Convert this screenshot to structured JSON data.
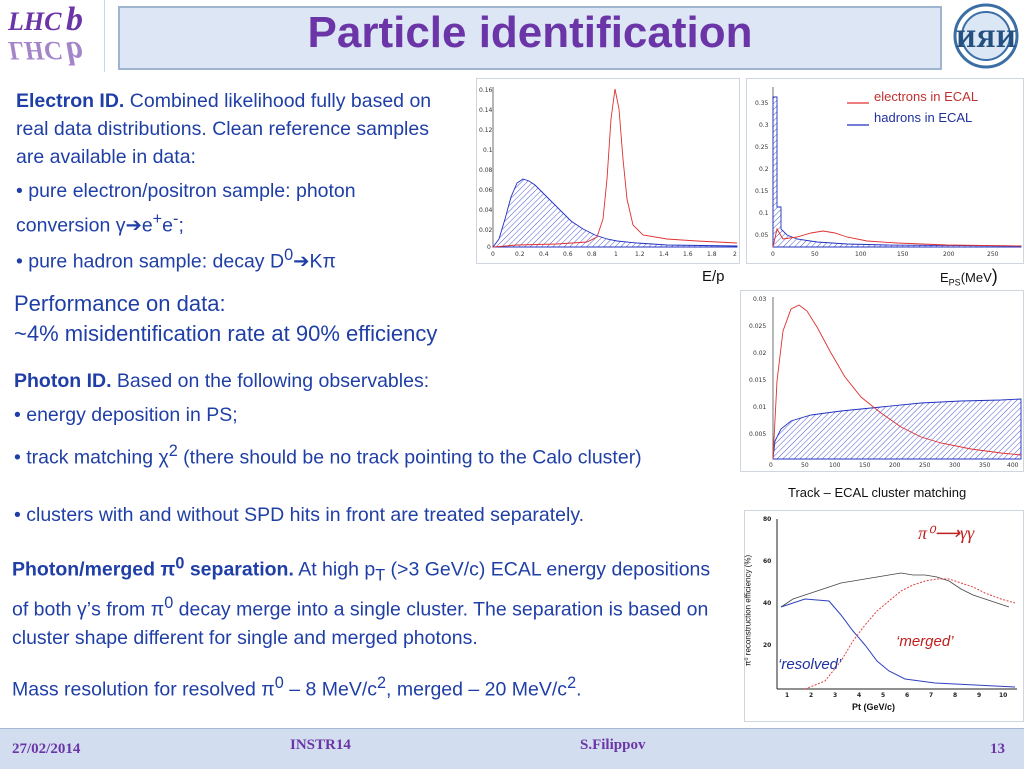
{
  "header": {
    "title": "Particle identification",
    "lhcb_logo_text": "LHCb",
    "inr_logo_text": "ИЯИ"
  },
  "electron": {
    "heading": "Electron ID.",
    "intro": "Combined likelihood fully based on real data distributions. Clean reference samples are available in data:",
    "bullet1_pre": "• pure electron/positron sample: photon conversion γ",
    "bullet1_post": "e",
    "bullet2_pre": "• pure hadron sample: decay D",
    "bullet2_post": "Kπ"
  },
  "performance": {
    "line1": "Performance on data:",
    "line2": "~4% misidentification rate at 90% efficiency"
  },
  "photon": {
    "heading": "Photon ID.",
    "intro": "Based on the following observables:",
    "bullet1": "• energy deposition in PS;",
    "bullet2_pre": "• track matching χ",
    "bullet2_post": " (there should be no track pointing to the Calo cluster)",
    "bullet3": "• clusters with and without SPD hits in front are treated separately."
  },
  "merged": {
    "heading_part1": "Photon/",
    "heading_part2": "merged π",
    "heading_part3": " separation.",
    "text1": " At high p",
    "text2": " (>3 GeV/c) ECAL energy depositions of both γ’s from π",
    "text3": "  decay merge into a single cluster. The separation is based on cluster shape different for single and merged photons.",
    "mass_pre": "Mass resolution for resolved π",
    "mass_mid": " – 8 MeV/c",
    "mass_mid2": ", merged – 20 MeV/c",
    "mass_end": "."
  },
  "figures": {
    "ep_label": "E/p",
    "eps_label_main": "E",
    "eps_label_sub": "PS",
    "eps_label_unit": "(MeV",
    "eps_label_paren": ")",
    "legend_electrons": "electrons in ECAL",
    "legend_hadrons": "hadrons in ECAL",
    "track_caption": "Track – ECAL cluster matching",
    "pi0_title": "π⁰⟶γγ",
    "merged_label": "‘merged’",
    "resolved_label": "‘resolved’",
    "pi0_xlabel": "Pt (GeV/c)",
    "pi0_ylabel": "π⁰ reconstruction efficiency (%)"
  },
  "footer": {
    "date": "27/02/2014",
    "conference": "INSTR14",
    "author": "S.Filippov",
    "page": "13"
  },
  "colors": {
    "title": "#6b35a8",
    "text": "#1f3fa6",
    "electrons": "#e03030",
    "hadrons": "#2030c0"
  }
}
